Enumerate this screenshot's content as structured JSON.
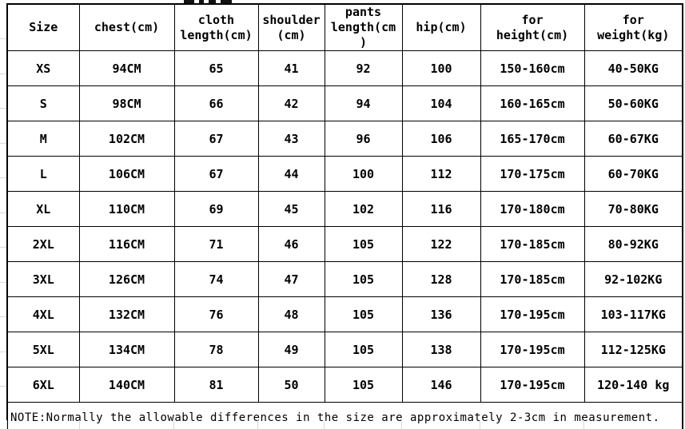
{
  "table": {
    "columns": [
      {
        "id": "size",
        "label": "Size"
      },
      {
        "id": "chest",
        "label": "chest(cm)"
      },
      {
        "id": "cloth-length",
        "label": "cloth\nlength(cm)"
      },
      {
        "id": "shoulder",
        "label": "shoulder\n(cm)"
      },
      {
        "id": "pants-length",
        "label": "pants\nlength(cm\n)"
      },
      {
        "id": "hip",
        "label": "hip(cm)"
      },
      {
        "id": "for-height",
        "label": "for\nheight(cm)"
      },
      {
        "id": "for-weight",
        "label": "for\nweight(kg)"
      }
    ],
    "rows": [
      [
        "XS",
        "94CM",
        "65",
        "41",
        "92",
        "100",
        "150-160cm",
        "40-50KG"
      ],
      [
        "S",
        "98CM",
        "66",
        "42",
        "94",
        "104",
        "160-165cm",
        "50-60KG"
      ],
      [
        "M",
        "102CM",
        "67",
        "43",
        "96",
        "106",
        "165-170cm",
        "60-67KG"
      ],
      [
        "L",
        "106CM",
        "67",
        "44",
        "100",
        "112",
        "170-175cm",
        "60-70KG"
      ],
      [
        "XL",
        "110CM",
        "69",
        "45",
        "102",
        "116",
        "170-180cm",
        "70-80KG"
      ],
      [
        "2XL",
        "116CM",
        "71",
        "46",
        "105",
        "122",
        "170-185cm",
        "80-92KG"
      ],
      [
        "3XL",
        "126CM",
        "74",
        "47",
        "105",
        "128",
        "170-185cm",
        "92-102KG"
      ],
      [
        "4XL",
        "132CM",
        "76",
        "48",
        "105",
        "136",
        "170-195cm",
        "103-117KG"
      ],
      [
        "5XL",
        "134CM",
        "78",
        "49",
        "105",
        "138",
        "170-195cm",
        "112-125KG"
      ],
      [
        "6XL",
        "140CM",
        "81",
        "50",
        "105",
        "146",
        "170-195cm",
        "120-140 kg"
      ]
    ],
    "note": "NOTE:Normally the allowable differences in the size are approximately 2-3cm in measurement."
  },
  "colors": {
    "text": "#000000",
    "table_border": "#000000",
    "faint_gridline": "#d9d9d9",
    "background": "#ffffff"
  }
}
